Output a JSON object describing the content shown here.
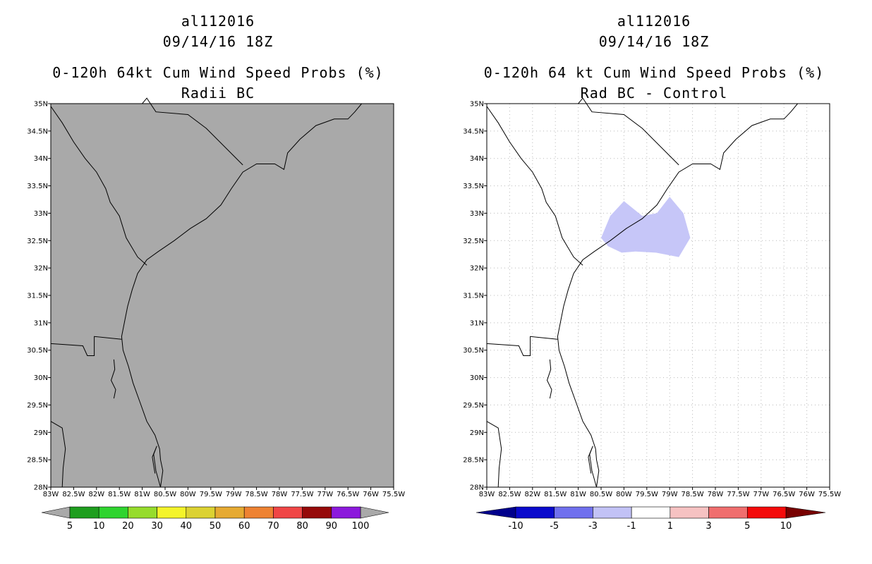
{
  "left_panel": {
    "storm_id": "al112016",
    "datetime": "09/14/16 18Z",
    "title": "0-120h 64kt Cum Wind Speed Probs (%)",
    "subtitle": "Radii BC",
    "colorbar": {
      "labels": [
        "5",
        "10",
        "20",
        "30",
        "40",
        "50",
        "60",
        "70",
        "80",
        "90",
        "100"
      ],
      "colors": [
        "#1e9e1e",
        "#2fd42f",
        "#96dc2c",
        "#f4f42a",
        "#dcd232",
        "#e6aa32",
        "#ee8232",
        "#f04646",
        "#960a0a",
        "#8c19dc"
      ]
    }
  },
  "right_panel": {
    "storm_id": "al112016",
    "datetime": "09/14/16 18Z",
    "title": "0-120h 64 kt Cum Wind Speed Probs (%)",
    "subtitle": "Rad BC - Control",
    "colorbar": {
      "labels": [
        "-10",
        "-5",
        "-3",
        "-1",
        "1",
        "3",
        "5",
        "10"
      ],
      "colors": [
        "#0a0acc",
        "#7070ee",
        "#c2c2f6",
        "#ffffff",
        "#f6c2c2",
        "#f06e6e",
        "#f40a0a"
      ],
      "low_arrow": "#00008c",
      "high_arrow": "#780000"
    }
  },
  "map": {
    "lat_labels": [
      "35N",
      "34.5N",
      "34N",
      "33.5N",
      "33N",
      "32.5N",
      "32N",
      "31.5N",
      "31N",
      "30.5N",
      "30N",
      "29.5N",
      "29N",
      "28.5N",
      "28N"
    ],
    "lon_labels": [
      "83W",
      "82.5W",
      "82W",
      "81.5W",
      "81W",
      "80.5W",
      "80W",
      "79.5W",
      "79W",
      "78.5W",
      "78W",
      "77.5W",
      "77W",
      "76.5W",
      "76W",
      "75.5W"
    ],
    "left_background": "#a9a9a9",
    "diff_shade_color": "#c6c6f8"
  }
}
